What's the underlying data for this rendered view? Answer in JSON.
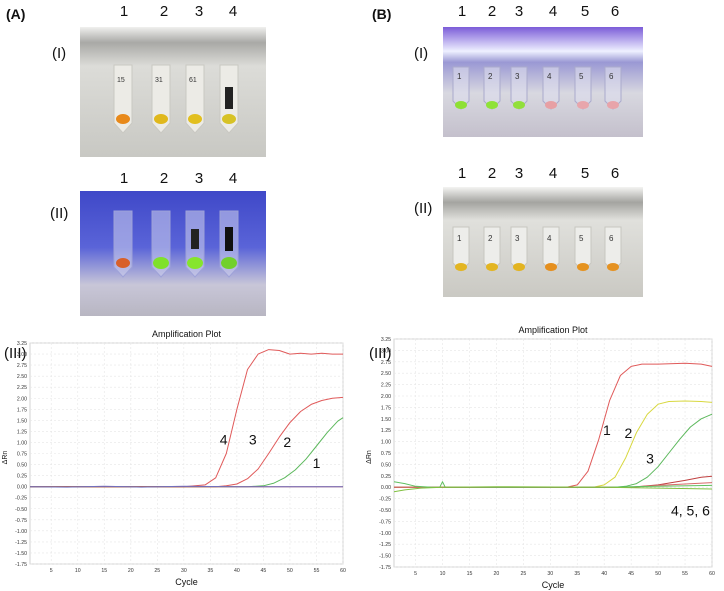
{
  "panels": {
    "A": {
      "label": "(A)",
      "photo_I": {
        "row_label": "(I)",
        "tube_numbers": [
          "1",
          "2",
          "3",
          "4"
        ],
        "tube_colors": [
          "#e8891a",
          "#e0b81c",
          "#e2bf1f",
          "#d7c225"
        ],
        "background": "#d6d6d2"
      },
      "photo_II": {
        "row_label": "(II)",
        "tube_numbers": [
          "1",
          "2",
          "3",
          "4"
        ],
        "tube_colors": [
          "#d8602a",
          "#7fe12a",
          "#86e52c",
          "#72d02c"
        ],
        "background": "#4a55d0"
      }
    },
    "B": {
      "label": "(B)",
      "photo_I": {
        "row_label": "(I)",
        "tube_numbers": [
          "1",
          "2",
          "3",
          "4",
          "5",
          "6"
        ],
        "tube_colors": [
          "#8ee034",
          "#8fe238",
          "#92df3c",
          "#e7a0a4",
          "#e8a6ac",
          "#e8a4aa"
        ],
        "background": "#b9b2cc"
      },
      "photo_II": {
        "row_label": "(II)",
        "tube_numbers": [
          "1",
          "2",
          "3",
          "4",
          "5",
          "6"
        ],
        "tube_colors": [
          "#e3b521",
          "#e3b521",
          "#e3b421",
          "#e58f1e",
          "#e59320",
          "#e59222"
        ],
        "background": "#d4d3cd"
      }
    }
  },
  "chart_data": [
    {
      "type": "line",
      "row_label": "(III)",
      "title": "Amplification Plot",
      "xlabel": "Cycle",
      "ylabel": "ΔRn",
      "xlim": [
        1,
        60
      ],
      "ylim": [
        -1.75,
        3.25
      ],
      "x_ticks": [
        5,
        10,
        15,
        20,
        25,
        30,
        35,
        40,
        45,
        50,
        55,
        60
      ],
      "y_ticks": [
        3.25,
        3.0,
        2.75,
        2.5,
        2.25,
        2.0,
        1.75,
        1.5,
        1.25,
        1.0,
        0.75,
        0.5,
        0.25,
        0.0,
        -0.25,
        -0.5,
        -0.75,
        -1.0,
        -1.25,
        -1.5,
        -1.75
      ],
      "y_tick_labels": [
        "3.25",
        "3.00",
        "2.75",
        "2.50",
        "2.25",
        "2.00",
        "1.75",
        "1.50",
        "1.25",
        "1.00",
        "0.75",
        "0.50",
        "0.25",
        "0.00",
        "-0.25",
        "-0.50",
        "-0.75",
        "-1.00",
        "-1.25",
        "-1.50",
        "-1.75"
      ],
      "grid": true,
      "series": [
        {
          "color": "#e05a5a",
          "points": [
            [
              1,
              0.0
            ],
            [
              30,
              0.0
            ],
            [
              34,
              0.04
            ],
            [
              36,
              0.2
            ],
            [
              38,
              0.75
            ],
            [
              40,
              1.75
            ],
            [
              42,
              2.65
            ],
            [
              44,
              3.0
            ],
            [
              46,
              3.1
            ],
            [
              48,
              3.08
            ],
            [
              50,
              3.0
            ],
            [
              52,
              3.02
            ],
            [
              54,
              3.0
            ],
            [
              56,
              3.02
            ],
            [
              58,
              3.0
            ],
            [
              60,
              3.0
            ]
          ]
        },
        {
          "color": "#e05a5a",
          "points": [
            [
              1,
              0.0
            ],
            [
              36,
              0.0
            ],
            [
              38,
              0.02
            ],
            [
              40,
              0.06
            ],
            [
              42,
              0.18
            ],
            [
              44,
              0.4
            ],
            [
              46,
              0.75
            ],
            [
              48,
              1.12
            ],
            [
              50,
              1.45
            ],
            [
              52,
              1.7
            ],
            [
              54,
              1.86
            ],
            [
              56,
              1.95
            ],
            [
              58,
              2.0
            ],
            [
              60,
              2.02
            ]
          ]
        },
        {
          "color": "#5cb85c",
          "points": [
            [
              1,
              0.0
            ],
            [
              42,
              0.0
            ],
            [
              45,
              0.02
            ],
            [
              47,
              0.08
            ],
            [
              49,
              0.2
            ],
            [
              51,
              0.38
            ],
            [
              53,
              0.62
            ],
            [
              55,
              0.92
            ],
            [
              57,
              1.22
            ],
            [
              59,
              1.48
            ],
            [
              60,
              1.56
            ]
          ]
        },
        {
          "color": "#c04040",
          "points": [
            [
              1,
              0.0
            ],
            [
              60,
              0.0
            ]
          ]
        },
        {
          "color": "#7070c0",
          "points": [
            [
              1,
              0.0
            ],
            [
              8,
              -0.01
            ],
            [
              15,
              0.01
            ],
            [
              22,
              -0.01
            ],
            [
              30,
              0.01
            ],
            [
              40,
              0.0
            ],
            [
              60,
              0.0
            ]
          ]
        }
      ],
      "annotations": [
        {
          "text": "4",
          "x": 37.5,
          "y": 0.95
        },
        {
          "text": "3",
          "x": 43,
          "y": 0.95
        },
        {
          "text": "2",
          "x": 49.5,
          "y": 0.9
        },
        {
          "text": "1",
          "x": 55,
          "y": 0.42
        }
      ]
    },
    {
      "type": "line",
      "row_label": "(III)",
      "title": "Amplification Plot",
      "xlabel": "Cycle",
      "ylabel": "ΔRn",
      "xlim": [
        1,
        60
      ],
      "ylim": [
        -1.75,
        3.25
      ],
      "x_ticks": [
        5,
        10,
        15,
        20,
        25,
        30,
        35,
        40,
        45,
        50,
        55,
        60
      ],
      "y_ticks": [
        3.25,
        3.0,
        2.75,
        2.5,
        2.25,
        2.0,
        1.75,
        1.5,
        1.25,
        1.0,
        0.75,
        0.5,
        0.25,
        0.0,
        -0.25,
        -0.5,
        -0.75,
        -1.0,
        -1.25,
        -1.5,
        -1.75
      ],
      "y_tick_labels": [
        "3.25",
        "3.00",
        "2.75",
        "2.50",
        "2.25",
        "2.00",
        "1.75",
        "1.50",
        "1.25",
        "1.00",
        "0.75",
        "0.50",
        "0.25",
        "0.00",
        "-0.25",
        "-0.50",
        "-0.75",
        "-1.00",
        "-1.25",
        "-1.50",
        "-1.75"
      ],
      "grid": true,
      "series": [
        {
          "color": "#e05a5a",
          "points": [
            [
              1,
              0.0
            ],
            [
              33,
              0.0
            ],
            [
              35,
              0.05
            ],
            [
              37,
              0.35
            ],
            [
              39,
              1.05
            ],
            [
              41,
              1.9
            ],
            [
              43,
              2.45
            ],
            [
              45,
              2.65
            ],
            [
              47,
              2.7
            ],
            [
              50,
              2.7
            ],
            [
              55,
              2.72
            ],
            [
              58,
              2.7
            ],
            [
              60,
              2.65
            ]
          ]
        },
        {
          "color": "#d8d840",
          "points": [
            [
              1,
              0.0
            ],
            [
              38,
              0.0
            ],
            [
              40,
              0.05
            ],
            [
              42,
              0.22
            ],
            [
              44,
              0.65
            ],
            [
              46,
              1.2
            ],
            [
              48,
              1.6
            ],
            [
              50,
              1.82
            ],
            [
              52,
              1.88
            ],
            [
              55,
              1.89
            ],
            [
              58,
              1.88
            ],
            [
              60,
              1.86
            ]
          ]
        },
        {
          "color": "#5cb85c",
          "points": [
            [
              1,
              0.0
            ],
            [
              42,
              0.0
            ],
            [
              44,
              0.02
            ],
            [
              46,
              0.08
            ],
            [
              48,
              0.22
            ],
            [
              50,
              0.45
            ],
            [
              52,
              0.75
            ],
            [
              54,
              1.05
            ],
            [
              56,
              1.32
            ],
            [
              58,
              1.5
            ],
            [
              60,
              1.6
            ]
          ]
        },
        {
          "color": "#c04040",
          "points": [
            [
              1,
              0.0
            ],
            [
              45,
              0.0
            ],
            [
              50,
              0.05
            ],
            [
              55,
              0.15
            ],
            [
              58,
              0.22
            ],
            [
              60,
              0.24
            ]
          ]
        },
        {
          "color": "#d86a6a",
          "points": [
            [
              1,
              0.0
            ],
            [
              45,
              0.0
            ],
            [
              50,
              0.04
            ],
            [
              55,
              0.07
            ],
            [
              60,
              0.1
            ]
          ]
        },
        {
          "color": "#60c060",
          "points": [
            [
              1,
              0.12
            ],
            [
              3,
              0.08
            ],
            [
              5,
              0.02
            ],
            [
              8,
              0.0
            ],
            [
              9.5,
              0.0
            ],
            [
              10,
              0.12
            ],
            [
              10.5,
              0.0
            ],
            [
              20,
              0.0
            ],
            [
              40,
              0.0
            ],
            [
              50,
              0.02
            ],
            [
              60,
              0.04
            ]
          ]
        },
        {
          "color": "#80c040",
          "points": [
            [
              1,
              -0.1
            ],
            [
              3,
              -0.06
            ],
            [
              6,
              -0.02
            ],
            [
              10,
              0.0
            ],
            [
              20,
              0.01
            ],
            [
              40,
              0.0
            ],
            [
              50,
              -0.02
            ],
            [
              60,
              -0.04
            ]
          ]
        }
      ],
      "annotations": [
        {
          "text": "1",
          "x": 40.5,
          "y": 1.15
        },
        {
          "text": "2",
          "x": 44.5,
          "y": 1.08
        },
        {
          "text": "3",
          "x": 48.5,
          "y": 0.52
        },
        {
          "text": "4, 5, 6",
          "x": 56,
          "y": -0.62
        }
      ]
    }
  ]
}
